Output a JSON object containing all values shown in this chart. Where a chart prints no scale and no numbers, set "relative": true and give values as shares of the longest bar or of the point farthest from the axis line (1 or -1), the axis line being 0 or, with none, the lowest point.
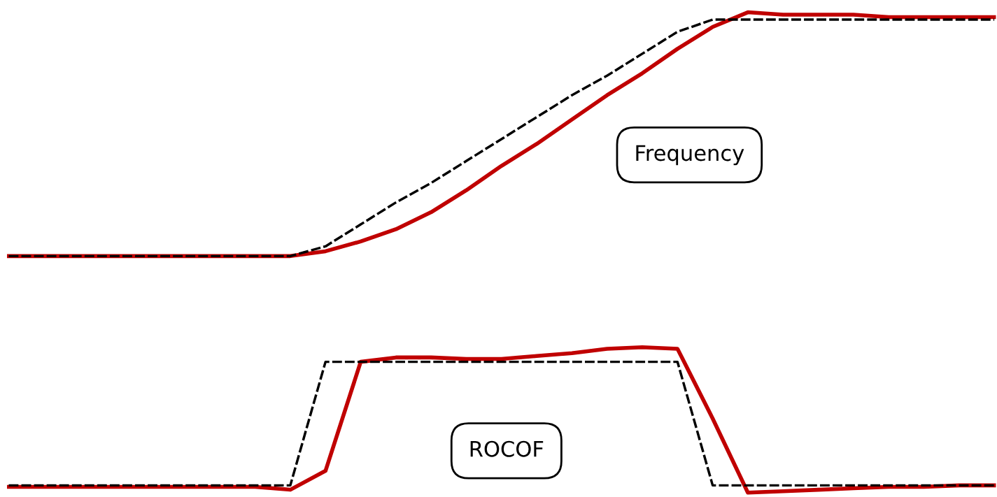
{
  "chart_data": [
    {
      "type": "line",
      "relative": true,
      "categories": [
        null,
        null,
        null,
        null,
        null,
        null,
        null,
        null,
        null,
        null,
        null,
        null,
        null,
        null,
        null,
        null,
        null,
        null,
        null,
        null,
        null,
        null,
        null,
        null,
        null,
        null,
        null,
        null,
        null
      ],
      "series": [
        {
          "color": "#000000",
          "line_style": "dashed",
          "values": [
            0,
            0,
            0,
            0,
            0,
            0,
            0,
            0,
            0,
            0.04,
            0.13,
            0.22,
            0.3,
            0.39,
            0.48,
            0.57,
            0.66,
            0.74,
            0.83,
            0.92,
            0.97,
            0.97,
            0.97,
            0.97,
            0.97,
            0.97,
            0.97,
            0.97,
            0.97
          ]
        },
        {
          "color": "#c00000",
          "line_style": "solid",
          "values": [
            0,
            0,
            0,
            0,
            0,
            0,
            0,
            0,
            0,
            0.02,
            0.06,
            0.11,
            0.18,
            0.27,
            0.37,
            0.46,
            0.56,
            0.66,
            0.75,
            0.85,
            0.94,
            1.0,
            0.99,
            0.99,
            0.99,
            0.98,
            0.98,
            0.98,
            0.98
          ]
        }
      ],
      "annotations": [
        "Frequency"
      ]
    },
    {
      "type": "line",
      "relative": true,
      "categories": [
        null,
        null,
        null,
        null,
        null,
        null,
        null,
        null,
        null,
        null,
        null,
        null,
        null,
        null,
        null,
        null,
        null,
        null,
        null,
        null,
        null,
        null,
        null,
        null,
        null,
        null,
        null,
        null,
        null
      ],
      "series": [
        {
          "color": "#000000",
          "line_style": "dashed",
          "values": [
            0.05,
            0.05,
            0.05,
            0.05,
            0.05,
            0.05,
            0.05,
            0.05,
            0.05,
            0.9,
            0.9,
            0.9,
            0.9,
            0.9,
            0.9,
            0.9,
            0.9,
            0.9,
            0.9,
            0.9,
            0.05,
            0.05,
            0.05,
            0.05,
            0.05,
            0.05,
            0.05,
            0.05,
            0.05
          ]
        },
        {
          "color": "#c00000",
          "line_style": "solid",
          "values": [
            0.04,
            0.04,
            0.04,
            0.04,
            0.04,
            0.04,
            0.04,
            0.04,
            0.02,
            0.15,
            0.9,
            0.93,
            0.93,
            0.92,
            0.92,
            0.94,
            0.96,
            0.99,
            1.0,
            0.99,
            0.51,
            0,
            0.01,
            0.02,
            0.03,
            0.04,
            0.04,
            0.05,
            0.05
          ]
        }
      ],
      "annotations": [
        "ROCOF"
      ]
    }
  ]
}
